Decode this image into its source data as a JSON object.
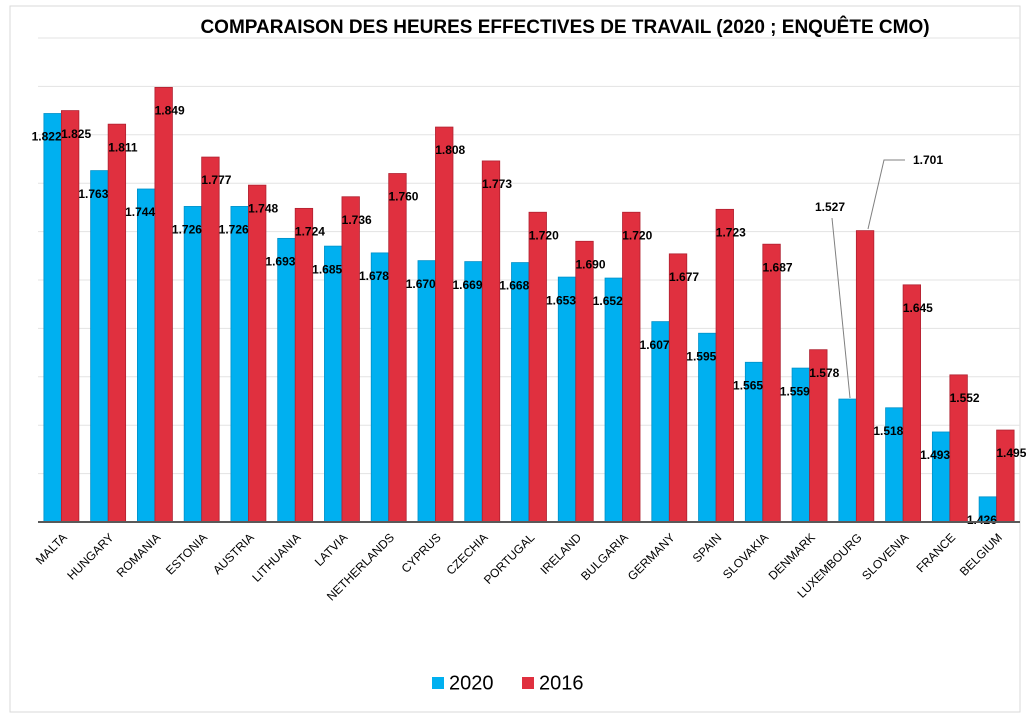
{
  "chart_data": {
    "type": "bar",
    "title": "COMPARAISON DES HEURES EFFECTIVES DE TRAVAIL (2020 ; ENQUÊTE CMO)",
    "categories": [
      "MALTA",
      "HUNGARY",
      "ROMANIA",
      "ESTONIA",
      "AUSTRIA",
      "LITHUANIA",
      "LATVIA",
      "NETHERLANDS",
      "CYPRUS",
      "CZECHIA",
      "PORTUGAL",
      "IRELAND",
      "BULGARIA",
      "GERMANY",
      "SPAIN",
      "SLOVAKIA",
      "DENMARK",
      "LUXEMBOURG",
      "SLOVENIA",
      "FRANCE",
      "BELGIUM"
    ],
    "series": [
      {
        "name": "2020",
        "color": "#00b0f0",
        "values": [
          1.822,
          1.763,
          1.744,
          1.726,
          1.726,
          1.693,
          1.685,
          1.678,
          1.67,
          1.669,
          1.668,
          1.653,
          1.652,
          1.607,
          1.595,
          1.565,
          1.559,
          1.527,
          1.518,
          1.493,
          1.426
        ],
        "value_labels": [
          "1.822",
          "1.763",
          "1.744",
          "1.726",
          "1.726",
          "1.693",
          "1.685",
          "1.678",
          "1.670",
          "1.669",
          "1.668",
          "1.653",
          "1.652",
          "1.607",
          "1.595",
          "1.565",
          "1.559",
          "1.527",
          "1.518",
          "1.493",
          "1.426"
        ]
      },
      {
        "name": "2016",
        "color": "#e0303f",
        "values": [
          1.825,
          1.811,
          1.849,
          1.777,
          1.748,
          1.724,
          1.736,
          1.76,
          1.808,
          1.773,
          1.72,
          1.69,
          1.72,
          1.677,
          1.723,
          1.687,
          1.578,
          1.701,
          1.645,
          1.552,
          1.495
        ],
        "value_labels": [
          "1.825",
          "1.811",
          "1.849",
          "1.777",
          "1.748",
          "1.724",
          "1.736",
          "1.760",
          "1.808",
          "1.773",
          "1.720",
          "1.690",
          "1.720",
          "1.677",
          "1.723",
          "1.687",
          "1.578",
          "1.701",
          "1.645",
          "1.552",
          "1.495"
        ]
      }
    ],
    "ylim": [
      1.4,
      1.9
    ],
    "yticks": [
      1.4,
      1.45,
      1.5,
      1.55,
      1.6,
      1.65,
      1.7,
      1.75,
      1.8,
      1.85,
      1.9
    ],
    "grid": true,
    "legend": "bottom"
  }
}
